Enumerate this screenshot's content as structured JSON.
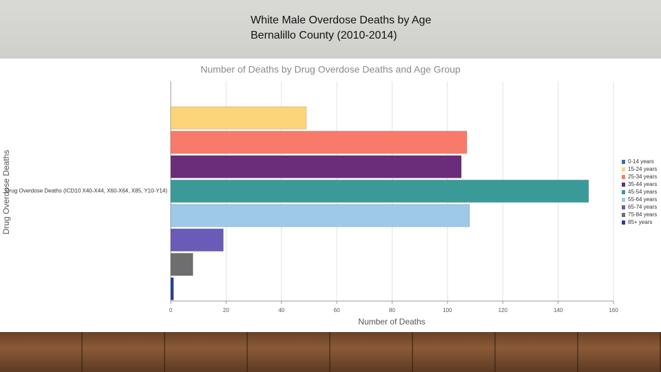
{
  "slide_title": "White Male Overdose Deaths by Age Bernalillo County (2010-2014)",
  "chart_data": {
    "type": "bar",
    "orientation": "horizontal",
    "title": "Number of Deaths by Drug Overdose Deaths and Age Group",
    "x_label": "Number of Deaths",
    "y_label": "Drug Overdose Deaths",
    "categories": [
      "Drug Overdose Deaths (ICD10 X40-X44, X60-X64, X85, Y10-Y14)"
    ],
    "series": [
      {
        "name": "0-14 years",
        "color": "#3a6fb0",
        "values": [
          0
        ]
      },
      {
        "name": "15-24 years",
        "color": "#fcd47a",
        "values": [
          49
        ]
      },
      {
        "name": "25-34 years",
        "color": "#f97a6a",
        "values": [
          107
        ]
      },
      {
        "name": "35-44 years",
        "color": "#6b2c7a",
        "values": [
          105
        ]
      },
      {
        "name": "45-54 years",
        "color": "#3a9a98",
        "values": [
          151
        ]
      },
      {
        "name": "55-64 years",
        "color": "#9ec9e8",
        "values": [
          108
        ]
      },
      {
        "name": "65-74 years",
        "color": "#6a5bb8",
        "values": [
          19
        ]
      },
      {
        "name": "75-84 years",
        "color": "#6e6e6e",
        "values": [
          8
        ]
      },
      {
        "name": "85+ years",
        "color": "#2a3f9a",
        "values": [
          1
        ]
      }
    ],
    "xlim": [
      0,
      160
    ],
    "xticks": [
      0,
      20,
      40,
      60,
      80,
      100,
      120,
      140,
      160
    ],
    "grid": true,
    "legend": "right"
  }
}
